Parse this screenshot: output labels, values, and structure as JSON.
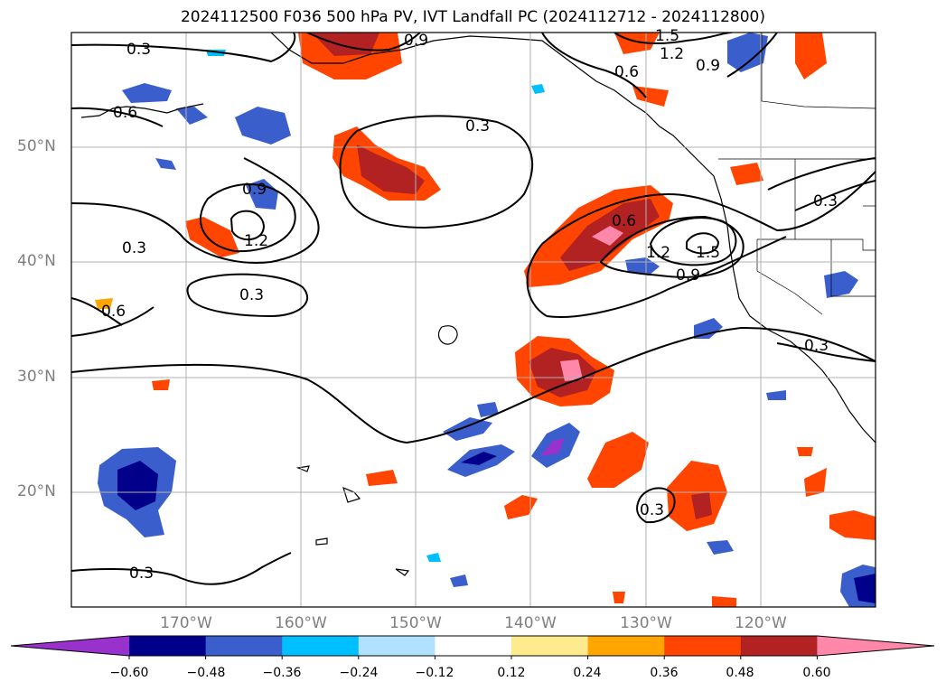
{
  "title": "2024112500 F036 500 hPa PV, IVT Landfall PC (2024112712 - 2024112800)",
  "lat_labels": [
    "50°N",
    "40°N",
    "30°N",
    "20°N"
  ],
  "lon_labels": [
    "170°W",
    "160°W",
    "150°W",
    "140°W",
    "130°W",
    "120°W"
  ],
  "contour_labels": [
    "0.3",
    "0.6",
    "0.9",
    "1.2",
    "1.5"
  ],
  "colorbar": {
    "ticks": [
      "−0.60",
      "−0.48",
      "−0.36",
      "−0.24",
      "−0.12",
      "0.12",
      "0.24",
      "0.36",
      "0.48",
      "0.60"
    ],
    "colors": [
      "#9932cc",
      "#00008b",
      "#3a5fcd",
      "#00bfff",
      "#b0e2ff",
      "#ffffff",
      "#fdeb8e",
      "#ffa500",
      "#ff4500",
      "#b22222",
      "#ff88aa"
    ]
  },
  "map_extent": {
    "lon_range": [
      -180,
      -110
    ],
    "lat_range": [
      10,
      60
    ]
  }
}
